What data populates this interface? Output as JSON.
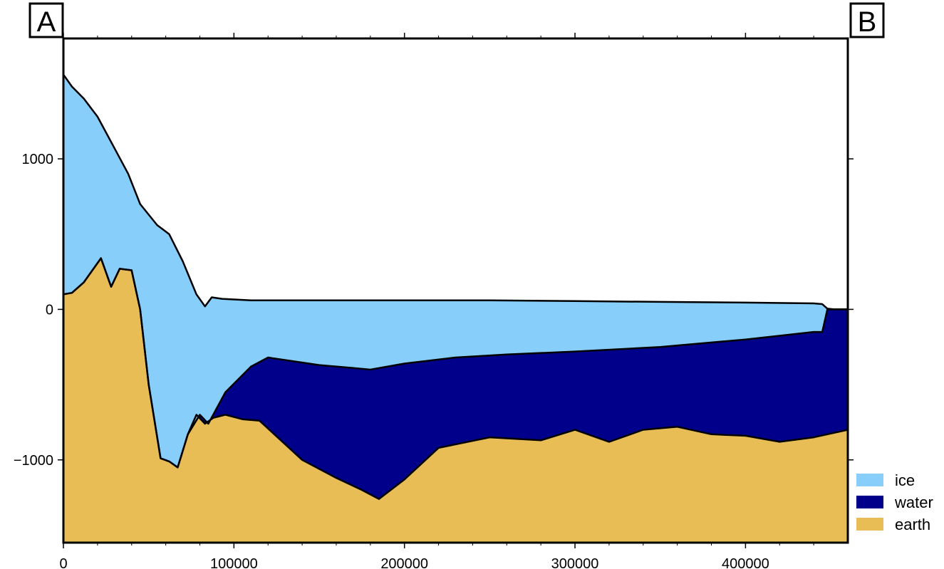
{
  "chart_data": {
    "type": "area",
    "title": "",
    "xlabel": "",
    "ylabel": "",
    "xlim": [
      0,
      460000
    ],
    "ylim": [
      -1550,
      1800
    ],
    "grid": false,
    "legend_position": "bottom-right-outside",
    "end_labels": {
      "left": "A",
      "right": "B"
    },
    "x_ticks": [
      0,
      100000,
      200000,
      300000,
      400000
    ],
    "x_tick_labels": [
      "0",
      "100000",
      "200000",
      "300000",
      "400000"
    ],
    "y_ticks": [
      1000,
      0,
      -1000
    ],
    "y_tick_labels": [
      "1000",
      "0",
      "−1000"
    ],
    "series": [
      {
        "name": "ice",
        "color": "#87cefa",
        "layer": "between surface and ice base",
        "surface": {
          "x": [
            0,
            5000,
            12000,
            20000,
            30000,
            38000,
            45000,
            55000,
            62000,
            70000,
            78000,
            83000,
            87000,
            93000,
            110000,
            150000,
            200000,
            250000,
            300000,
            350000,
            400000,
            440000,
            445000,
            448000,
            452000,
            460000
          ],
          "y": [
            1560,
            1480,
            1400,
            1280,
            1070,
            900,
            700,
            560,
            500,
            320,
            100,
            20,
            80,
            70,
            60,
            60,
            60,
            60,
            55,
            50,
            45,
            40,
            35,
            5,
            0,
            0
          ]
        }
      },
      {
        "name": "water",
        "color": "#00008b",
        "layer": "between ice base and bed",
        "ice_base": {
          "x": [
            0,
            5000,
            12000,
            22000,
            28000,
            33000,
            40000,
            45000,
            50000,
            57000,
            62000,
            67000,
            73000,
            80000,
            85000,
            95000,
            110000,
            120000,
            150000,
            170000,
            180000,
            200000,
            230000,
            260000,
            300000,
            350000,
            400000,
            440000,
            445000,
            448000,
            452000,
            460000
          ],
          "y": [
            100,
            110,
            180,
            340,
            150,
            270,
            260,
            0,
            -500,
            -990,
            -1010,
            -1050,
            -830,
            -700,
            -760,
            -550,
            -380,
            -320,
            -370,
            -390,
            -400,
            -360,
            -320,
            -300,
            -280,
            -250,
            -200,
            -150,
            -150,
            0,
            0,
            0
          ]
        }
      },
      {
        "name": "earth",
        "color": "#e9bd56",
        "layer": "below bed",
        "bed": {
          "x": [
            0,
            5000,
            12000,
            22000,
            28000,
            33000,
            40000,
            45000,
            50000,
            57000,
            62000,
            67000,
            73000,
            78000,
            83000,
            88000,
            95000,
            105000,
            115000,
            140000,
            160000,
            175000,
            185000,
            200000,
            220000,
            250000,
            280000,
            300000,
            320000,
            340000,
            360000,
            380000,
            400000,
            420000,
            440000,
            460000
          ],
          "y": [
            100,
            110,
            180,
            340,
            150,
            270,
            260,
            0,
            -500,
            -990,
            -1010,
            -1050,
            -830,
            -700,
            -760,
            -720,
            -700,
            -730,
            -740,
            -1000,
            -1120,
            -1200,
            -1260,
            -1130,
            -920,
            -850,
            -870,
            -800,
            -880,
            -800,
            -780,
            -830,
            -840,
            -880,
            -850,
            -800
          ]
        }
      }
    ]
  }
}
